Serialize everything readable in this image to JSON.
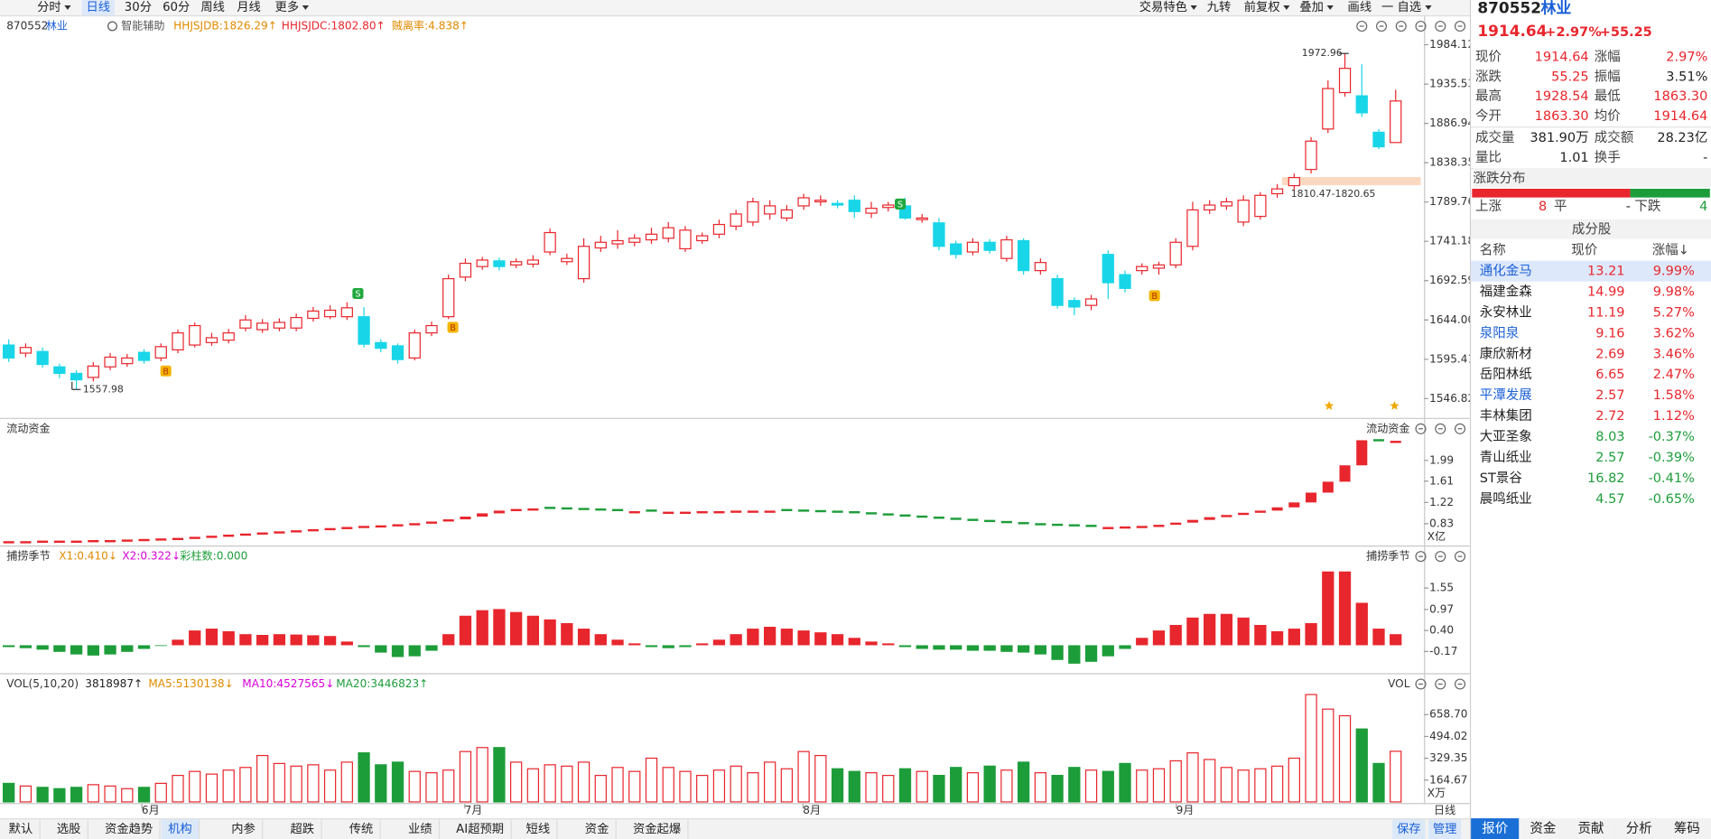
{
  "toolbar": {
    "left": [
      "分时",
      "日线",
      "30分",
      "60分",
      "周线",
      "月线",
      "更多"
    ],
    "right": [
      "交易特色",
      "九转",
      "前复权",
      "叠加",
      "画线",
      "一 自选"
    ]
  },
  "price_pane": {
    "code": "870552",
    "name": "林业",
    "assist": "智能辅助",
    "indicators": [
      "HHJSJDB:1826.29↑",
      "HHJSJDC:1802.80↑",
      "贼离率:4.838↑"
    ],
    "ylim": [
      1527,
      1999
    ],
    "yticks": [
      1984.12,
      1935.53,
      1886.94,
      1838.35,
      1789.76,
      1741.18,
      1692.59,
      {
        "value": 1644,
        "label": "1644.00"
      },
      1595.41,
      1546.82
    ],
    "candles": [
      [
        1613,
        1597,
        1620,
        1592
      ],
      [
        1603,
        1610,
        1615,
        1598
      ],
      [
        1605,
        1589,
        1610,
        1585
      ],
      [
        1586,
        1578,
        1590,
        1572
      ],
      [
        1578,
        1570,
        1582,
        1557.98
      ],
      [
        1573,
        1587,
        1592,
        1568
      ],
      [
        1586,
        1598,
        1603,
        1582
      ],
      [
        1590,
        1597,
        1602,
        1586
      ],
      [
        1604,
        1594,
        1608,
        1590
      ],
      [
        1597,
        1611,
        1615,
        1593
      ],
      [
        1607,
        1628,
        1632,
        1603
      ],
      [
        1613,
        1637,
        1641,
        1610
      ],
      [
        1616,
        1622,
        1628,
        1612
      ],
      [
        1619,
        1628,
        1633,
        1615
      ],
      [
        1634,
        1644,
        1650,
        1630
      ],
      [
        1632,
        1640,
        1645,
        1628
      ],
      [
        1634,
        1641,
        1646,
        1630
      ],
      [
        1634,
        1647,
        1652,
        1630
      ],
      [
        1646,
        1655,
        1660,
        1642
      ],
      [
        1648,
        1656,
        1662,
        1645
      ],
      [
        1648,
        1659,
        1666,
        1644
      ],
      [
        1648,
        1614,
        1660,
        1610
      ],
      [
        1616,
        1609,
        1620,
        1604
      ],
      [
        1612,
        1595,
        1615,
        1590
      ],
      [
        1597,
        1628,
        1632,
        1594
      ],
      [
        1628,
        1637,
        1642,
        1624
      ],
      [
        1648,
        1695,
        1700,
        1645
      ],
      [
        1697,
        1714,
        1720,
        1692
      ],
      [
        1710,
        1718,
        1722,
        1706
      ],
      [
        1717,
        1710,
        1721,
        1705
      ],
      [
        1712,
        1716,
        1720,
        1708
      ],
      [
        1713,
        1718,
        1724,
        1709
      ],
      [
        1728,
        1752,
        1757,
        1724
      ],
      [
        1716,
        1720,
        1726,
        1712
      ],
      [
        1695,
        1735,
        1745,
        1690
      ],
      [
        1733,
        1740,
        1748,
        1728
      ],
      [
        1738,
        1742,
        1755,
        1732
      ],
      [
        1740,
        1745,
        1750,
        1735
      ],
      [
        1743,
        1750,
        1758,
        1738
      ],
      [
        1745,
        1758,
        1765,
        1740
      ],
      [
        1732,
        1755,
        1760,
        1728
      ],
      [
        1742,
        1748,
        1752,
        1738
      ],
      [
        1750,
        1762,
        1768,
        1745
      ],
      [
        1760,
        1775,
        1780,
        1755
      ],
      [
        1765,
        1790,
        1795,
        1760
      ],
      [
        1775,
        1785,
        1792,
        1768
      ],
      [
        1770,
        1780,
        1786,
        1766
      ],
      [
        1785,
        1795,
        1800,
        1780
      ],
      [
        1790,
        1792,
        1798,
        1785
      ],
      [
        1788,
        1786,
        1792,
        1782
      ],
      [
        1792,
        1778,
        1798,
        1770
      ],
      [
        1776,
        1782,
        1790,
        1770
      ],
      [
        1783,
        1786,
        1790,
        1778
      ],
      [
        1785,
        1770,
        1795,
        1768
      ],
      [
        1768,
        1770,
        1775,
        1764
      ],
      [
        1764,
        1735,
        1770,
        1730
      ],
      [
        1738,
        1725,
        1742,
        1720
      ],
      [
        1728,
        1740,
        1745,
        1724
      ],
      [
        1740,
        1730,
        1744,
        1726
      ],
      [
        1720,
        1743,
        1748,
        1716
      ],
      [
        1742,
        1705,
        1745,
        1700
      ],
      [
        1705,
        1715,
        1720,
        1700
      ],
      [
        1695,
        1662,
        1700,
        1658
      ],
      [
        1668,
        1660,
        1672,
        1650
      ],
      [
        1662,
        1670,
        1675,
        1656
      ],
      [
        1725,
        1690,
        1730,
        1670
      ],
      [
        1700,
        1683,
        1705,
        1678
      ],
      [
        1705,
        1710,
        1714,
        1700
      ],
      [
        1708,
        1712,
        1716,
        1700
      ],
      [
        1712,
        1740,
        1745,
        1708
      ],
      [
        1735,
        1780,
        1790,
        1730
      ],
      [
        1780,
        1786,
        1792,
        1775
      ],
      [
        1785,
        1790,
        1795,
        1780
      ],
      [
        1765,
        1792,
        1798,
        1760
      ],
      [
        1772,
        1798,
        1802,
        1768
      ],
      [
        1800,
        1806,
        1812,
        1795
      ],
      [
        1810,
        1820,
        1825,
        1805
      ],
      [
        1830,
        1865,
        1870,
        1825
      ],
      [
        1880,
        1930,
        1940,
        1875
      ],
      [
        1925,
        1955,
        1972.96,
        1920
      ],
      [
        1921,
        1900,
        1960,
        1895
      ],
      [
        1876,
        1858,
        1880,
        1855
      ],
      [
        1863.3,
        1914.64,
        1928.54,
        1863.3
      ]
    ],
    "high_label": "1972.96",
    "low_label": "1557.98",
    "zone": {
      "low": 1810.47,
      "high": 1820.65,
      "label": "1810.47-1820.65"
    },
    "signals": [
      "B",
      "S",
      "B",
      "S",
      "B"
    ]
  },
  "flow_pane": {
    "title": "流动资金",
    "unit": "X亿",
    "ylim": [
      0.49,
      2.43
    ],
    "yticks": [
      1.99,
      1.61,
      1.22,
      0.83
    ],
    "values": [
      0.51,
      0.51,
      0.52,
      0.52,
      0.52,
      0.53,
      0.53,
      0.54,
      0.55,
      0.56,
      0.57,
      0.59,
      0.61,
      0.63,
      0.65,
      0.67,
      0.69,
      0.71,
      0.73,
      0.75,
      0.77,
      0.79,
      0.8,
      0.82,
      0.84,
      0.87,
      0.91,
      0.96,
      1.02,
      1.07,
      1.1,
      1.11,
      1.1,
      1.09,
      1.08,
      1.07,
      1.06,
      1.06,
      1.05,
      1.05,
      1.05,
      1.06,
      1.06,
      1.07,
      1.07,
      1.07,
      1.06,
      1.05,
      1.04,
      1.03,
      1.02,
      1.0,
      0.98,
      0.96,
      0.94,
      0.92,
      0.9,
      0.88,
      0.86,
      0.84,
      0.82,
      0.8,
      0.79,
      0.78,
      0.77,
      0.77,
      0.78,
      0.79,
      0.81,
      0.85,
      0.9,
      0.95,
      0.99,
      1.03,
      1.07,
      1.13,
      1.22,
      1.4,
      1.6,
      1.9,
      2.36,
      2.34,
      2.35
    ]
  },
  "season_pane": {
    "title": "捕捞季节",
    "indicators": [
      "X1:0.410↓",
      "X2:0.322↓",
      "彩柱数:0.000"
    ],
    "ylim": [
      -0.61,
      2.2
    ],
    "yticks": [
      1.55,
      0.97,
      {
        "value": 0.4,
        "label": "0.40"
      },
      -0.17
    ],
    "values": [
      -0.05,
      -0.08,
      -0.12,
      -0.18,
      -0.25,
      -0.28,
      -0.25,
      -0.18,
      -0.1,
      -0.02,
      0.15,
      0.4,
      0.45,
      0.38,
      0.3,
      0.28,
      0.3,
      0.29,
      0.27,
      0.25,
      0.1,
      -0.05,
      -0.2,
      -0.32,
      -0.3,
      -0.15,
      0.3,
      0.8,
      0.95,
      0.98,
      0.9,
      0.8,
      0.7,
      0.6,
      0.45,
      0.3,
      0.15,
      0.05,
      -0.05,
      -0.08,
      -0.05,
      0.05,
      0.15,
      0.3,
      0.45,
      0.5,
      0.45,
      0.4,
      0.35,
      0.3,
      0.2,
      0.1,
      0.05,
      -0.05,
      -0.1,
      -0.12,
      -0.12,
      -0.15,
      -0.15,
      -0.18,
      -0.2,
      -0.25,
      -0.4,
      -0.5,
      -0.45,
      -0.3,
      -0.1,
      0.2,
      0.4,
      0.55,
      0.75,
      0.85,
      0.85,
      0.75,
      0.55,
      0.38,
      0.45,
      0.6,
      2.0,
      2.0,
      1.15,
      0.45,
      0.3
    ]
  },
  "volume_pane": {
    "title": "VOL",
    "header": "VOL(5,10,20)",
    "indicators": [
      "3818987↑",
      "MA5:5130138↓",
      "MA10:4527565↓",
      "MA20:3446823↑"
    ],
    "unit": "X万",
    "ylim": [
      0,
      864
    ],
    "yticks": [
      {
        "value": 658.7,
        "label": "658.70"
      },
      494.02,
      329.35,
      164.67
    ],
    "values": [
      140,
      120,
      110,
      100,
      110,
      130,
      120,
      100,
      110,
      140,
      200,
      230,
      210,
      240,
      260,
      350,
      290,
      270,
      280,
      240,
      300,
      370,
      280,
      300,
      230,
      220,
      240,
      380,
      410,
      410,
      300,
      250,
      280,
      270,
      300,
      200,
      260,
      230,
      330,
      260,
      230,
      200,
      240,
      270,
      220,
      300,
      250,
      380,
      350,
      250,
      230,
      220,
      200,
      250,
      230,
      200,
      260,
      220,
      270,
      240,
      300,
      220,
      200,
      260,
      240,
      230,
      290,
      240,
      250,
      310,
      370,
      320,
      260,
      240,
      250,
      270,
      330,
      810,
      700,
      650,
      550,
      290,
      381.9
    ]
  },
  "date_axis": {
    "months": [
      "6月",
      "7月",
      "8月",
      "9月"
    ],
    "period": "日线"
  },
  "quote": {
    "code": "870552",
    "name": "林业",
    "price": "1914.64",
    "change_pct": "+2.97%",
    "change": "+55.25",
    "fields": [
      [
        "现价",
        "1914.64",
        "涨幅",
        "2.97%"
      ],
      [
        "涨跌",
        "55.25",
        "振幅",
        "3.51%"
      ],
      [
        "最高",
        "1928.54",
        "最低",
        "1863.30"
      ],
      [
        "今开",
        "1863.30",
        "均价",
        "1914.64"
      ],
      [
        "成交量",
        "381.90万",
        "成交额",
        "28.23亿"
      ],
      [
        "量比",
        "1.01",
        "换手",
        "-"
      ]
    ],
    "distribution": {
      "title": "涨跌分布",
      "up_label": "上涨",
      "up": 8,
      "flat_label": "平",
      "flat": "-",
      "down_label": "下跌",
      "down": 4
    },
    "constituents": {
      "title": "成分股",
      "columns": [
        "名称",
        "现价",
        "涨幅↓"
      ],
      "rows": [
        {
          "name": "通化金马",
          "price": "13.21",
          "change": "9.99%",
          "name_color": "#1a5fd6"
        },
        {
          "name": "福建金森",
          "price": "14.99",
          "change": "9.98%",
          "name_color": "#222"
        },
        {
          "name": "永安林业",
          "price": "11.19",
          "change": "5.27%",
          "name_color": "#222"
        },
        {
          "name": "泉阳泉",
          "price": "9.16",
          "change": "3.62%",
          "name_color": "#1a5fd6"
        },
        {
          "name": "康欣新材",
          "price": "2.69",
          "change": "3.46%",
          "name_color": "#222"
        },
        {
          "name": "岳阳林纸",
          "price": "6.65",
          "change": "2.47%",
          "name_color": "#222"
        },
        {
          "name": "平潭发展",
          "price": "2.57",
          "change": "1.58%",
          "name_color": "#1a5fd6"
        },
        {
          "name": "丰林集团",
          "price": "2.72",
          "change": "1.12%",
          "name_color": "#222"
        },
        {
          "name": "大亚圣象",
          "price": "8.03",
          "change": "-0.37%",
          "name_color": "#222"
        },
        {
          "name": "青山纸业",
          "price": "2.57",
          "change": "-0.39%",
          "name_color": "#222"
        },
        {
          "name": "ST景谷",
          "price": "16.82",
          "change": "-0.41%",
          "name_color": "#222"
        },
        {
          "name": "晨鸣纸业",
          "price": "4.57",
          "change": "-0.65%",
          "name_color": "#222"
        }
      ]
    },
    "tabs": [
      "报价",
      "资金",
      "贡献",
      "分析",
      "筹码"
    ]
  },
  "bottom_tabs": {
    "left": [
      "默认",
      "选股",
      "资金趋势",
      "机构",
      "内参",
      "超跌",
      "传统",
      "业绩",
      "AI超预期",
      "短线",
      "资金",
      "资金起爆"
    ],
    "right": [
      "保存",
      "管理"
    ]
  }
}
